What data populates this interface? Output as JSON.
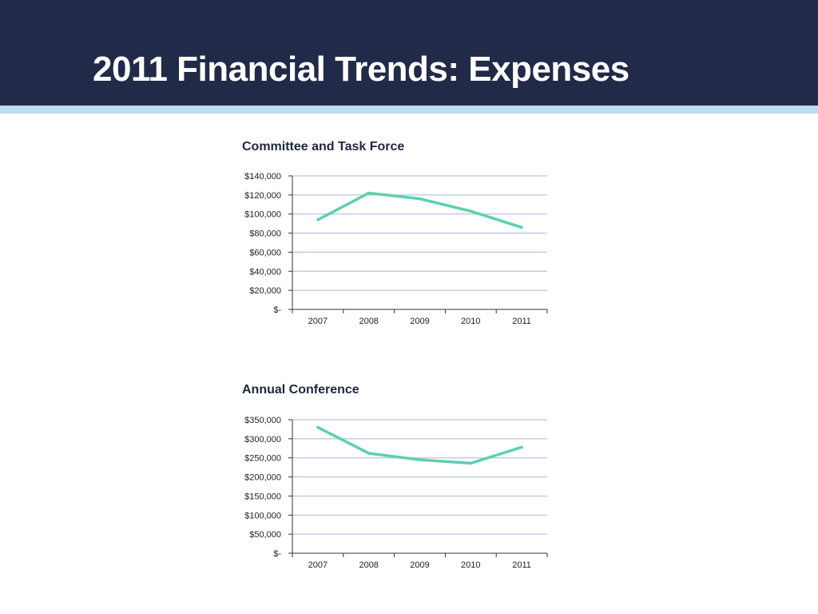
{
  "page": {
    "title": "2011 Financial Trends: Expenses"
  },
  "colors": {
    "header_bg": "#212a48",
    "accent_bar": "#bcdcf0",
    "line": "#5fcfae",
    "gridline": "#a9b6dc"
  },
  "chart_data": [
    {
      "type": "line",
      "title": "Committee and Task Force",
      "categories": [
        "2007",
        "2008",
        "2009",
        "2010",
        "2011"
      ],
      "series": [
        {
          "values": [
            94000,
            122000,
            116000,
            103000,
            86000
          ]
        }
      ],
      "ylim": [
        0,
        140000
      ],
      "yticks": [
        0,
        20000,
        40000,
        60000,
        80000,
        100000,
        120000,
        140000
      ],
      "ytick_labels": [
        "$-",
        "$20,000",
        "$40,000",
        "$60,000",
        "$80,000",
        "$100,000",
        "$120,000",
        "$140,000"
      ],
      "xlabel": "",
      "ylabel": "",
      "grid": true,
      "legend": "none"
    },
    {
      "type": "line",
      "title": "Annual Conference",
      "categories": [
        "2007",
        "2008",
        "2009",
        "2010",
        "2011"
      ],
      "series": [
        {
          "values": [
            330000,
            262000,
            245000,
            236000,
            278000
          ]
        }
      ],
      "ylim": [
        0,
        350000
      ],
      "yticks": [
        0,
        50000,
        100000,
        150000,
        200000,
        250000,
        300000,
        350000
      ],
      "ytick_labels": [
        "$-",
        "$50,000",
        "$100,000",
        "$150,000",
        "$200,000",
        "$250,000",
        "$300,000",
        "$350,000"
      ],
      "xlabel": "",
      "ylabel": "",
      "grid": true,
      "legend": "none"
    }
  ]
}
